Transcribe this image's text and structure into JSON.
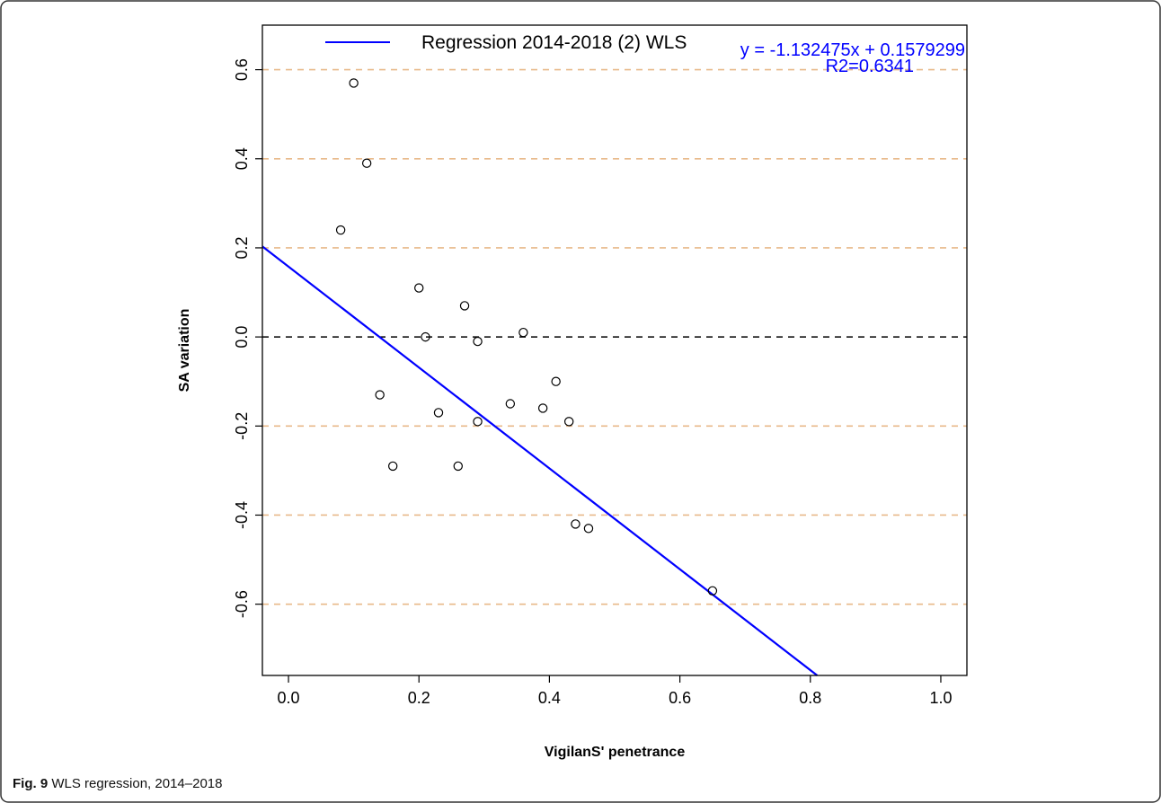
{
  "caption": {
    "label": "Fig. 9",
    "text": "WLS regression, 2014–2018"
  },
  "chart_data": {
    "type": "scatter",
    "xlabel": "VigilanS' penetrance",
    "ylabel": "SA variation",
    "xlim": [
      -0.04,
      1.04
    ],
    "ylim": [
      -0.76,
      0.7
    ],
    "xticks": [
      "0.0",
      "0.2",
      "0.4",
      "0.6",
      "0.8",
      "1.0"
    ],
    "yticks": [
      "-0.6",
      "-0.4",
      "-0.2",
      "0.0",
      "0.2",
      "0.4",
      "0.6"
    ],
    "points": [
      {
        "x": 0.08,
        "y": 0.24
      },
      {
        "x": 0.1,
        "y": 0.57
      },
      {
        "x": 0.12,
        "y": 0.39
      },
      {
        "x": 0.14,
        "y": -0.13
      },
      {
        "x": 0.16,
        "y": -0.29
      },
      {
        "x": 0.2,
        "y": 0.11
      },
      {
        "x": 0.21,
        "y": 0.0
      },
      {
        "x": 0.23,
        "y": -0.17
      },
      {
        "x": 0.26,
        "y": -0.29
      },
      {
        "x": 0.27,
        "y": 0.07
      },
      {
        "x": 0.29,
        "y": -0.01
      },
      {
        "x": 0.29,
        "y": -0.19
      },
      {
        "x": 0.34,
        "y": -0.15
      },
      {
        "x": 0.36,
        "y": 0.01
      },
      {
        "x": 0.39,
        "y": -0.16
      },
      {
        "x": 0.41,
        "y": -0.1
      },
      {
        "x": 0.43,
        "y": -0.19
      },
      {
        "x": 0.44,
        "y": -0.42
      },
      {
        "x": 0.46,
        "y": -0.43
      },
      {
        "x": 0.65,
        "y": -0.57
      }
    ],
    "regression": {
      "name": "Regression 2014-2018 (2) WLS",
      "slope": -1.132475,
      "intercept": 0.1579299,
      "equation_text": "y = -1.132475x + 0.1579299",
      "r2_text": "R2=0.6341",
      "color": "#0000ff"
    },
    "reference_lines": {
      "dashed_orange": [
        -0.6,
        -0.4,
        -0.2,
        0.2,
        0.4,
        0.6
      ],
      "dashed_black": [
        0.0
      ],
      "orange_color": "#e8b98a",
      "black_color": "#000000"
    },
    "legend": {
      "placement": "top",
      "entries": [
        "Regression 2014-2018 (2) WLS"
      ]
    },
    "grid": false
  }
}
